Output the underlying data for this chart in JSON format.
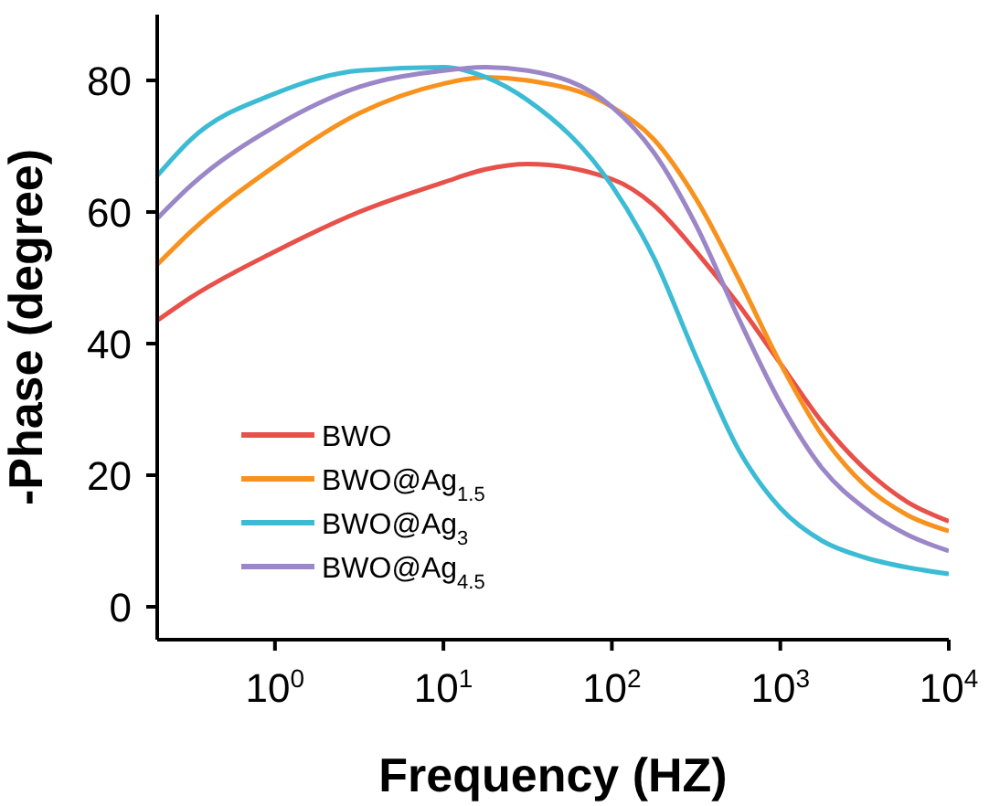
{
  "chart_data": {
    "type": "line",
    "xlabel": "Frequency (HZ)",
    "ylabel": "-Phase (degree)",
    "x": [
      0.2,
      0.316,
      1,
      3.16,
      10,
      17.8,
      31.6,
      100,
      178,
      316,
      562,
      1000,
      1778,
      3162,
      5623,
      10000
    ],
    "series": [
      {
        "name": "BWO",
        "color": "#e8504a",
        "values": [
          43.5,
          47,
          54,
          60,
          64.5,
          66.5,
          67.3,
          65,
          61,
          54,
          46,
          37,
          28,
          21,
          16,
          13
        ]
      },
      {
        "name": "BWO@Ag$_{1.5}$",
        "color": "#f7921e",
        "values": [
          52,
          57,
          67,
          75,
          79.5,
          80.5,
          80,
          76,
          71,
          62,
          50,
          37,
          26,
          18.5,
          14,
          11.5
        ]
      },
      {
        "name": "BWO@Ag$_{3}$",
        "color": "#3bbcd4",
        "values": [
          65.5,
          71,
          78,
          81.5,
          82,
          80.5,
          77,
          64,
          53,
          38,
          24,
          15,
          10,
          7.5,
          6,
          5
        ]
      },
      {
        "name": "BWO@Ag$_{4.5}$",
        "color": "#9b86c7",
        "values": [
          59,
          64,
          73,
          79,
          81.5,
          82,
          81.5,
          76,
          69,
          58,
          44,
          31,
          21,
          15,
          11,
          8.5
        ]
      }
    ],
    "xlim": [
      0.2,
      10000
    ],
    "xticks": [
      {
        "value": 1,
        "label": "10$^{0}$"
      },
      {
        "value": 10,
        "label": "10$^{1}$"
      },
      {
        "value": 100,
        "label": "10$^{2}$"
      },
      {
        "value": 1000,
        "label": "10$^{3}$"
      },
      {
        "value": 10000,
        "label": "10$^{4}$"
      }
    ],
    "ylim": [
      -5,
      90
    ],
    "yticks": [
      0,
      20,
      40,
      60,
      80
    ],
    "log": "x",
    "grid": false,
    "legend": "bottom left",
    "marker": "none",
    "line_style": "solid"
  }
}
